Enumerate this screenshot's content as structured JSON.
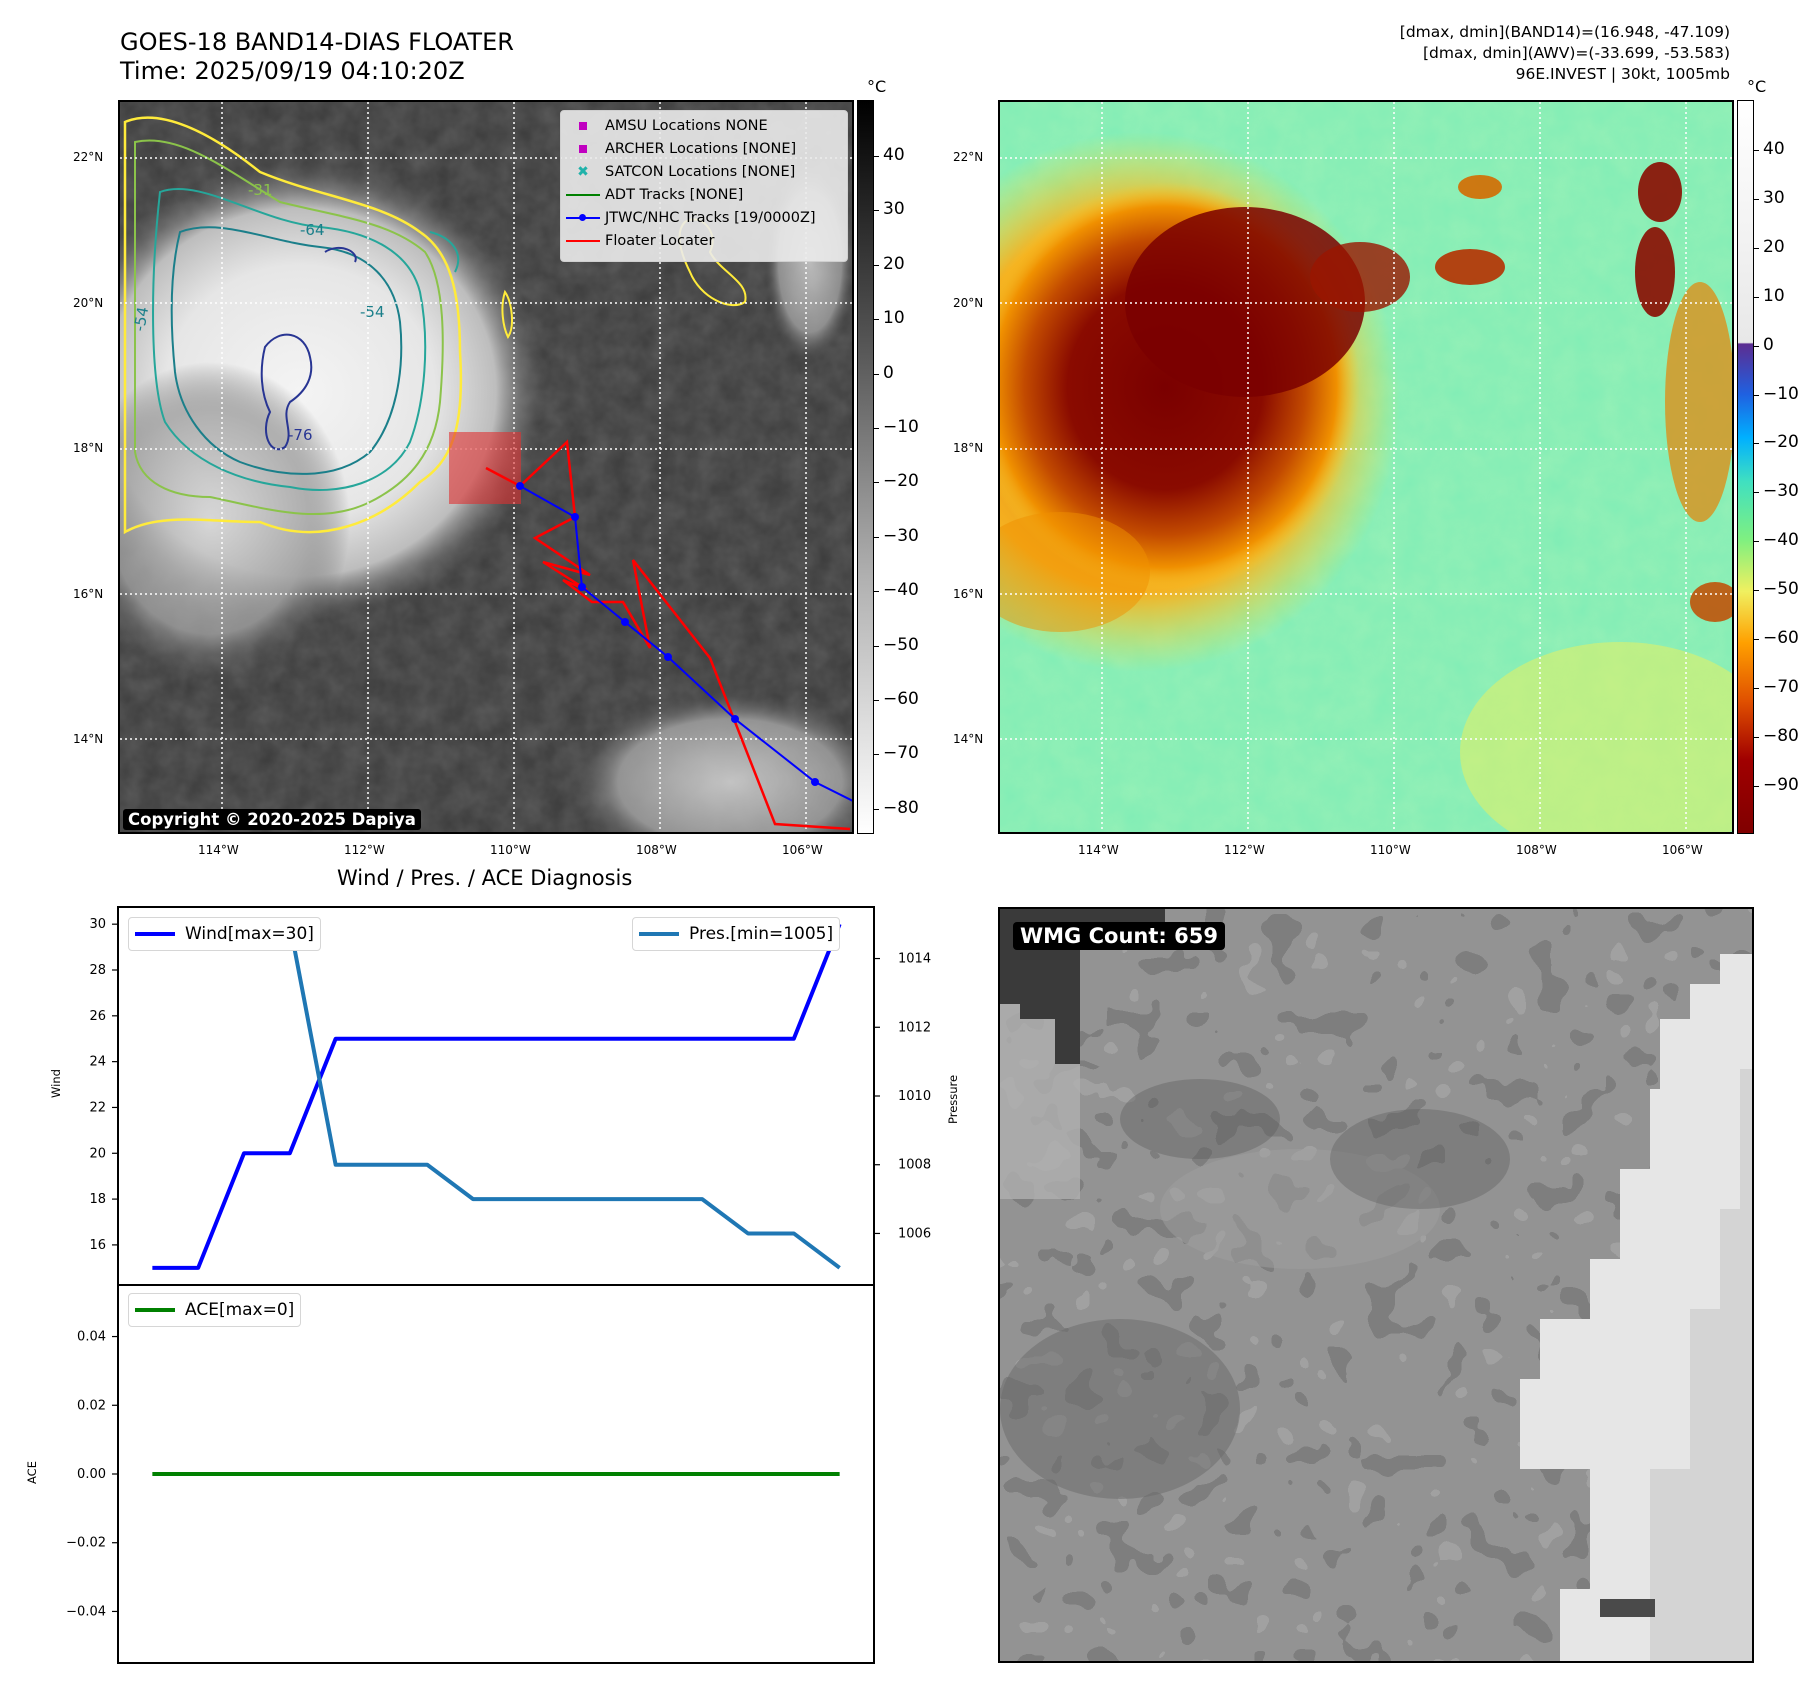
{
  "header": {
    "title_line1": "GOES-18 BAND14-DIAS FLOATER",
    "title_line2": "Time: 2025/09/19 04:10:20Z",
    "stats_line1": "[dmax, dmin](BAND14)=(16.948, -47.109)",
    "stats_line2": "[dmax, dmin](AWV)=(-33.699, -53.583)",
    "stats_line3": "96E.INVEST | 30kt, 1005mb"
  },
  "map_common": {
    "lat_labels": [
      "22°N",
      "20°N",
      "18°N",
      "16°N",
      "14°N"
    ],
    "lon_labels": [
      "114°W",
      "112°W",
      "110°W",
      "108°W",
      "106°W"
    ]
  },
  "ir_panel": {
    "copyright": "Copyright © 2020-2025 Dapiya",
    "colorbar_unit": "°C",
    "colorbar_ticks": [
      "40",
      "30",
      "20",
      "10",
      "0",
      "−10",
      "−20",
      "−30",
      "−40",
      "−50",
      "−60",
      "−70",
      "−80"
    ],
    "contour_labels": [
      "-31",
      "-64",
      "-54",
      "-54",
      "-76"
    ],
    "legend": [
      {
        "label": "AMSU Locations NONE",
        "symbol": "square",
        "color": "#c000c0"
      },
      {
        "label": "ARCHER Locations [NONE]",
        "symbol": "square",
        "color": "#c000c0"
      },
      {
        "label": "SATCON Locations [NONE]",
        "symbol": "x",
        "color": "#20b2aa"
      },
      {
        "label": "ADT Tracks [NONE]",
        "symbol": "line",
        "color": "#008000"
      },
      {
        "label": "JTWC/NHC Tracks [19/0000Z]",
        "symbol": "line-dot",
        "color": "#0000ff"
      },
      {
        "label": "Floater Locater",
        "symbol": "line",
        "color": "#ff0000"
      }
    ]
  },
  "wv_panel": {
    "colorbar_unit": "°C",
    "colorbar_ticks": [
      "40",
      "30",
      "20",
      "10",
      "0",
      "−10",
      "−20",
      "−30",
      "−40",
      "−50",
      "−60",
      "−70",
      "−80",
      "−90"
    ]
  },
  "diagnosis": {
    "title": "Wind / Pres. / ACE Diagnosis",
    "wind_legend": "Wind[max=30]",
    "pres_legend": "Pres.[min=1005]",
    "ace_legend": "ACE[max=0]",
    "wind_axis_label": "Wind",
    "pres_axis_label": "Pressure",
    "ace_axis_label": "ACE"
  },
  "wmg_panel": {
    "count_label": "WMG Count: 659"
  },
  "chart_data": [
    {
      "type": "line",
      "title": "Wind / Pres. / ACE Diagnosis",
      "series": [
        {
          "name": "Wind[max=30]",
          "axis": "left",
          "color": "#0000ff",
          "x": [
            0,
            1,
            2,
            3,
            4,
            5,
            6,
            7,
            8,
            9,
            10,
            11,
            12,
            13,
            14,
            15
          ],
          "values": [
            15,
            15,
            20,
            20,
            25,
            25,
            25,
            25,
            25,
            25,
            25,
            25,
            25,
            25,
            25,
            30
          ]
        },
        {
          "name": "Pres.[min=1005]",
          "axis": "right",
          "color": "#1f77b4",
          "x": [
            0,
            1,
            2,
            3,
            4,
            5,
            6,
            7,
            8,
            9,
            10,
            11,
            12,
            13,
            14,
            15
          ],
          "values": [
            1015,
            1015,
            1015,
            1015,
            1008,
            1008,
            1008,
            1007,
            1007,
            1007,
            1007,
            1007,
            1007,
            1006,
            1006,
            1005
          ]
        }
      ],
      "y_left": {
        "label": "Wind",
        "ticks": [
          16,
          18,
          20,
          22,
          24,
          26,
          28,
          30
        ],
        "ylim": [
          14.25,
          30.75
        ]
      },
      "y_right": {
        "label": "Pressure",
        "ticks": [
          1006,
          1008,
          1010,
          1012,
          1014
        ],
        "ylim": [
          1004.5,
          1015.5
        ]
      },
      "xlim": [
        -0.75,
        15.75
      ]
    },
    {
      "type": "line",
      "series": [
        {
          "name": "ACE[max=0]",
          "color": "#008000",
          "x": [
            0,
            1,
            2,
            3,
            4,
            5,
            6,
            7,
            8,
            9,
            10,
            11,
            12,
            13,
            14,
            15
          ],
          "values": [
            0,
            0,
            0,
            0,
            0,
            0,
            0,
            0,
            0,
            0,
            0,
            0,
            0,
            0,
            0,
            0
          ]
        }
      ],
      "y": {
        "label": "ACE",
        "ticks": [
          -0.04,
          -0.02,
          0.0,
          0.02,
          0.04
        ],
        "tick_labels": [
          "−0.04",
          "−0.02",
          "0.00",
          "0.02",
          "0.04"
        ],
        "ylim": [
          -0.055,
          0.055
        ]
      },
      "xlim": [
        -0.75,
        15.75
      ]
    }
  ]
}
